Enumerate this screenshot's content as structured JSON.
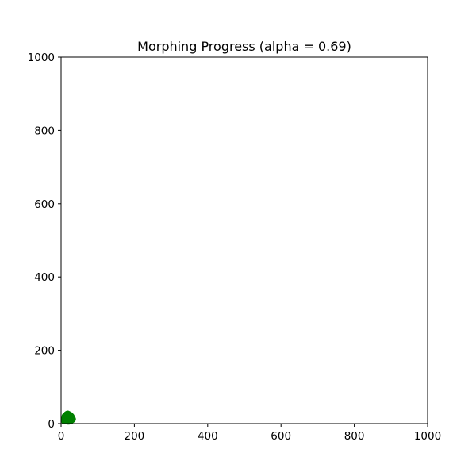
{
  "chart_data": {
    "type": "scatter",
    "title": "Morphing Progress (alpha = 0.69)",
    "xlabel": "",
    "ylabel": "",
    "xlim": [
      0,
      1000
    ],
    "ylim": [
      0,
      1000
    ],
    "xticks": [
      0,
      200,
      400,
      600,
      800,
      1000
    ],
    "yticks": [
      0,
      200,
      400,
      600,
      800,
      1000
    ],
    "xtick_labels": [
      "0",
      "200",
      "400",
      "600",
      "800",
      "1000"
    ],
    "ytick_labels": [
      "0",
      "200",
      "400",
      "600",
      "800",
      "1000"
    ],
    "grid": false,
    "marker_color": "#008000",
    "series": [
      {
        "points": [
          [
            8,
            8
          ],
          [
            10,
            14
          ],
          [
            12,
            20
          ],
          [
            14,
            24
          ],
          [
            16,
            26
          ],
          [
            18,
            27
          ],
          [
            20,
            26
          ],
          [
            22,
            25
          ],
          [
            24,
            24
          ],
          [
            26,
            22
          ],
          [
            28,
            20
          ],
          [
            29,
            18
          ],
          [
            30,
            16
          ],
          [
            31,
            14
          ],
          [
            32,
            12
          ],
          [
            30,
            10
          ],
          [
            28,
            9
          ],
          [
            26,
            8
          ],
          [
            24,
            7
          ],
          [
            22,
            6
          ],
          [
            20,
            6
          ],
          [
            18,
            6
          ],
          [
            16,
            7
          ],
          [
            14,
            8
          ],
          [
            12,
            10
          ],
          [
            10,
            12
          ],
          [
            9,
            16
          ],
          [
            10,
            20
          ],
          [
            13,
            23
          ],
          [
            17,
            24
          ],
          [
            21,
            23
          ],
          [
            25,
            21
          ],
          [
            27,
            17
          ],
          [
            26,
            13
          ],
          [
            23,
            11
          ],
          [
            19,
            10
          ],
          [
            15,
            11
          ],
          [
            12,
            14
          ],
          [
            14,
            18
          ],
          [
            18,
            20
          ],
          [
            22,
            19
          ],
          [
            24,
            16
          ],
          [
            21,
            14
          ],
          [
            17,
            15
          ],
          [
            19,
            17
          ],
          [
            20,
            13
          ],
          [
            16,
            12
          ],
          [
            23,
            18
          ],
          [
            11,
            18
          ],
          [
            25,
            12
          ]
        ]
      }
    ]
  }
}
